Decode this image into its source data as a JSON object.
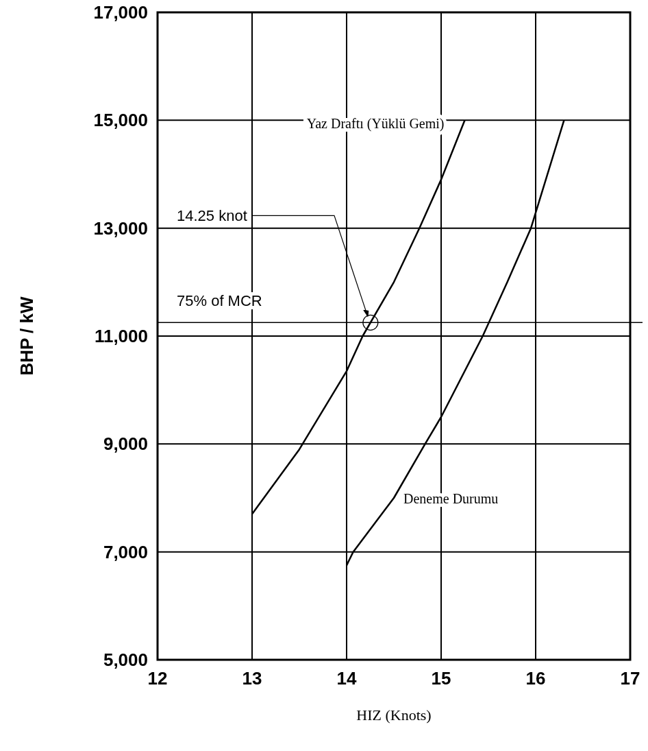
{
  "chart_data": {
    "type": "line",
    "xlabel": "HIZ (Knots)",
    "ylabel": "BHP / kW",
    "xlim": [
      12,
      17
    ],
    "xticks": [
      12,
      13,
      14,
      15,
      16,
      17
    ],
    "ylim": [
      5000,
      17000
    ],
    "yticks": [
      {
        "value": 5000,
        "label": "5,000"
      },
      {
        "value": 7000,
        "label": "7,000"
      },
      {
        "value": 9000,
        "label": "9,000"
      },
      {
        "value": 11000,
        "label": "11,000"
      },
      {
        "value": 13000,
        "label": "13,000"
      },
      {
        "value": 15000,
        "label": "15,000"
      },
      {
        "value": 17000,
        "label": "17,000"
      }
    ],
    "grid": true,
    "legend": false,
    "marker": "none",
    "line_style": "solid",
    "series": [
      {
        "name": "Yaz Draftı (Yüklü Gemi)",
        "color": "#000000",
        "x": [
          13,
          13.5,
          14,
          14.17,
          14.5,
          14.77,
          15,
          15.25
        ],
        "values": [
          7700,
          8900,
          10350,
          11000,
          12000,
          13000,
          13900,
          15000
        ]
      },
      {
        "name": "Deneme Durumu",
        "color": "#000000",
        "x": [
          14,
          14.07,
          14.5,
          14.83,
          15,
          15.44,
          15.7,
          15.95,
          16.3
        ],
        "values": [
          6750,
          7000,
          8000,
          9000,
          9500,
          11000,
          12000,
          13000,
          15000
        ]
      }
    ],
    "ref_lines": [
      {
        "axis": "y",
        "value": 11250,
        "label": "75% of MCR"
      }
    ],
    "annotations": [
      "14.25 knot"
    ]
  }
}
